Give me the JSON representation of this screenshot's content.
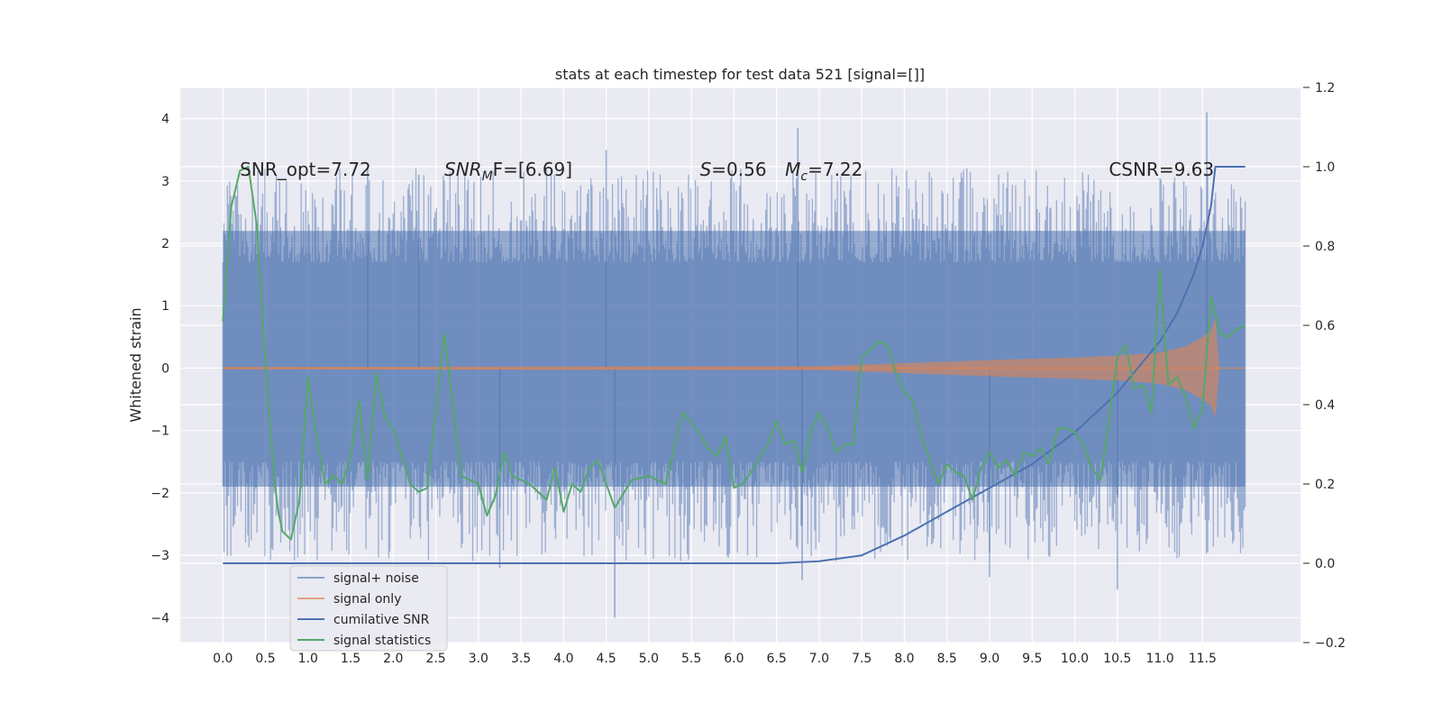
{
  "chart_data": {
    "type": "line",
    "title": "stats at each timestep for test data 521 [signal=[]]",
    "xlabel": "",
    "ylabel": "Whitened strain",
    "ylabel_right": "",
    "grid": true,
    "legend_position": "lower-left",
    "xlim": [
      -0.5,
      12.65
    ],
    "ylim": [
      -4.4,
      4.5
    ],
    "ylim_right": [
      -0.2,
      1.2
    ],
    "xticks": [
      "0.0",
      "0.5",
      "1.0",
      "1.5",
      "2.0",
      "2.5",
      "3.0",
      "3.5",
      "4.0",
      "4.5",
      "5.0",
      "5.5",
      "6.0",
      "6.5",
      "7.0",
      "7.5",
      "8.0",
      "8.5",
      "9.0",
      "9.5",
      "10.0",
      "10.5",
      "11.0",
      "11.5"
    ],
    "yticks_left": [
      "−4",
      "−3",
      "−2",
      "−1",
      "0",
      "1",
      "2",
      "3",
      "4"
    ],
    "yticks_right": [
      "−0.2",
      "0.0",
      "0.2",
      "0.4",
      "0.6",
      "0.8",
      "1.0",
      "1.2"
    ],
    "annotations": [
      {
        "text": "SNR_opt=7.72",
        "x": 0.2,
        "y": 3.2
      },
      {
        "text": "SNR",
        "sub": "M",
        "suffix": "F=[6.69]",
        "x": 2.6,
        "y": 3.2
      },
      {
        "text": "S",
        "suffix": "=0.56",
        "x": 5.6,
        "y": 3.2
      },
      {
        "text": "M",
        "sub": "c",
        "suffix": "=7.22",
        "x": 6.6,
        "y": 3.2
      },
      {
        "text": "CSNR=9.63",
        "x": 10.4,
        "y": 3.2
      }
    ],
    "legend": [
      {
        "name": "signal+ noise",
        "color": "#4c72b0"
      },
      {
        "name": "signal only",
        "color": "#dd8452"
      },
      {
        "name": "cumilative SNR",
        "color": "#4c72b0"
      },
      {
        "name": "signal statistics",
        "color": "#55a868"
      }
    ],
    "series": [
      {
        "name": "signal+ noise",
        "axis": "left",
        "style": "noise-band",
        "color": "#4c72b0",
        "x": [
          0.0,
          12.0
        ],
        "upper_typical": [
          2.2,
          2.2
        ],
        "lower_typical": [
          -1.9,
          -1.9
        ],
        "peaks": [
          [
            2.3,
            3.1
          ],
          [
            1.7,
            3.2
          ],
          [
            3.25,
            -3.2
          ],
          [
            4.5,
            3.5
          ],
          [
            4.6,
            -4.0
          ],
          [
            6.75,
            3.85
          ],
          [
            6.8,
            -3.4
          ],
          [
            9.0,
            -3.35
          ],
          [
            10.5,
            -3.55
          ],
          [
            11.55,
            4.1
          ]
        ]
      },
      {
        "name": "signal only",
        "axis": "left",
        "style": "chirp",
        "color": "#dd8452",
        "x": [
          0.0,
          7.0,
          8.0,
          9.0,
          10.0,
          10.5,
          11.0,
          11.3,
          11.5,
          11.6,
          11.65,
          11.7,
          12.0
        ],
        "envelope": [
          0.02,
          0.03,
          0.08,
          0.13,
          0.17,
          0.2,
          0.25,
          0.35,
          0.5,
          0.6,
          0.8,
          0.0,
          0.0
        ]
      },
      {
        "name": "cumilative SNR",
        "axis": "right",
        "color": "#4c72b0",
        "x": [
          0.0,
          6.5,
          7.0,
          7.5,
          8.0,
          8.5,
          9.0,
          9.5,
          10.0,
          10.5,
          11.0,
          11.2,
          11.4,
          11.5,
          11.6,
          11.65,
          12.0
        ],
        "y": [
          0.0,
          0.0,
          0.005,
          0.02,
          0.07,
          0.13,
          0.19,
          0.25,
          0.33,
          0.43,
          0.56,
          0.63,
          0.73,
          0.8,
          0.9,
          1.0,
          1.0
        ]
      },
      {
        "name": "signal statistics",
        "axis": "right",
        "color": "#55a868",
        "x": [
          0.0,
          0.1,
          0.2,
          0.3,
          0.4,
          0.5,
          0.6,
          0.65,
          0.7,
          0.8,
          0.9,
          1.0,
          1.1,
          1.2,
          1.3,
          1.4,
          1.5,
          1.6,
          1.7,
          1.8,
          1.9,
          2.0,
          2.1,
          2.2,
          2.3,
          2.4,
          2.6,
          2.8,
          3.0,
          3.1,
          3.2,
          3.3,
          3.4,
          3.6,
          3.8,
          3.9,
          4.0,
          4.1,
          4.2,
          4.3,
          4.4,
          4.6,
          4.8,
          5.0,
          5.2,
          5.4,
          5.55,
          5.7,
          5.8,
          5.9,
          6.0,
          6.1,
          6.2,
          6.4,
          6.5,
          6.6,
          6.7,
          6.8,
          6.9,
          7.0,
          7.1,
          7.2,
          7.3,
          7.4,
          7.5,
          7.6,
          7.7,
          7.8,
          7.9,
          8.0,
          8.1,
          8.2,
          8.3,
          8.4,
          8.5,
          8.6,
          8.7,
          8.8,
          8.9,
          9.0,
          9.1,
          9.2,
          9.3,
          9.4,
          9.5,
          9.6,
          9.7,
          9.8,
          9.9,
          10.0,
          10.1,
          10.2,
          10.3,
          10.4,
          10.5,
          10.6,
          10.7,
          10.8,
          10.9,
          11.0,
          11.1,
          11.2,
          11.3,
          11.4,
          11.5,
          11.6,
          11.65,
          11.7,
          11.8,
          11.9,
          12.0
        ],
        "y": [
          0.61,
          0.9,
          0.99,
          1.0,
          0.85,
          0.5,
          0.22,
          0.13,
          0.08,
          0.06,
          0.16,
          0.47,
          0.32,
          0.2,
          0.22,
          0.2,
          0.27,
          0.41,
          0.21,
          0.48,
          0.37,
          0.34,
          0.27,
          0.2,
          0.18,
          0.19,
          0.58,
          0.22,
          0.2,
          0.12,
          0.17,
          0.28,
          0.22,
          0.2,
          0.16,
          0.24,
          0.13,
          0.2,
          0.18,
          0.24,
          0.26,
          0.14,
          0.21,
          0.22,
          0.2,
          0.38,
          0.34,
          0.29,
          0.27,
          0.32,
          0.19,
          0.2,
          0.23,
          0.3,
          0.36,
          0.3,
          0.31,
          0.23,
          0.33,
          0.38,
          0.34,
          0.28,
          0.3,
          0.3,
          0.52,
          0.54,
          0.56,
          0.55,
          0.48,
          0.43,
          0.41,
          0.32,
          0.26,
          0.2,
          0.25,
          0.23,
          0.22,
          0.16,
          0.24,
          0.28,
          0.24,
          0.26,
          0.22,
          0.28,
          0.27,
          0.29,
          0.25,
          0.34,
          0.34,
          0.33,
          0.3,
          0.24,
          0.21,
          0.36,
          0.52,
          0.55,
          0.44,
          0.45,
          0.38,
          0.74,
          0.45,
          0.47,
          0.42,
          0.34,
          0.39,
          0.67,
          0.63,
          0.58,
          0.57,
          0.59,
          0.6
        ]
      }
    ]
  }
}
